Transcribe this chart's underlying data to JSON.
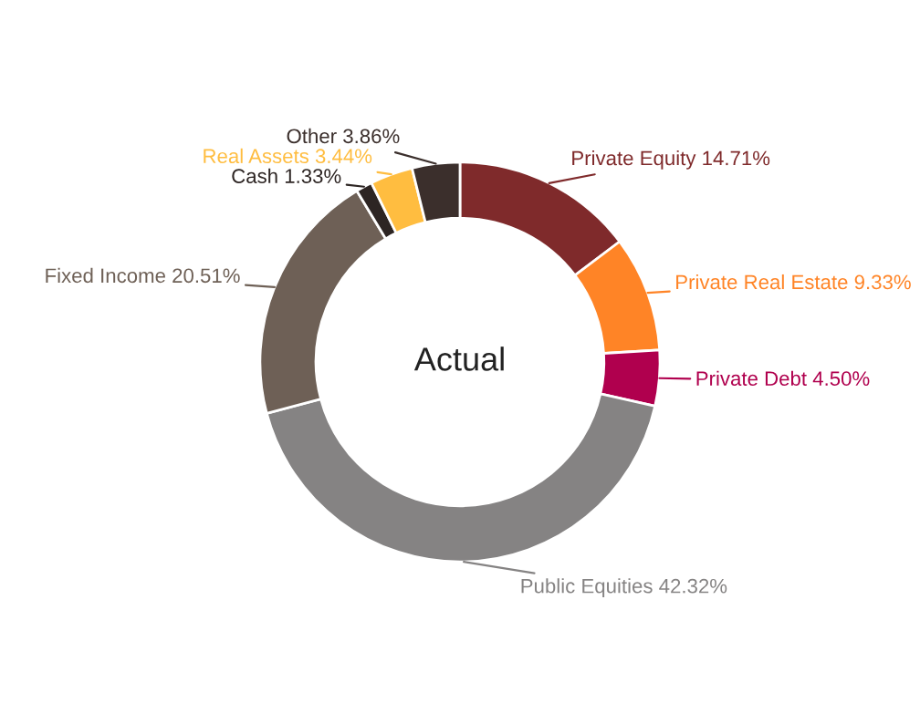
{
  "chart_data": {
    "type": "donut",
    "title": "Actual",
    "categories": [
      "Private Equity",
      "Private Real Estate",
      "Private Debt",
      "Public Equities",
      "Fixed Income",
      "Cash",
      "Real Assets",
      "Other"
    ],
    "values": [
      14.71,
      9.33,
      4.5,
      42.32,
      20.51,
      1.33,
      3.44,
      3.86
    ],
    "value_labels": [
      "14.71%",
      "9.33%",
      "4.50%",
      "42.32%",
      "20.51%",
      "1.33%",
      "3.44%",
      "3.86%"
    ],
    "colors": [
      "#7f2a2b",
      "#ff8426",
      "#b0004e",
      "#858383",
      "#6e6056",
      "#2d2523",
      "#ffbd40",
      "#3b2f2c"
    ],
    "legend": false
  }
}
